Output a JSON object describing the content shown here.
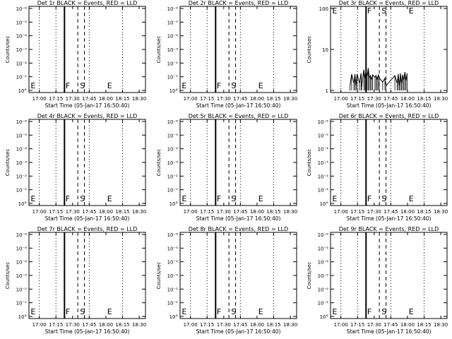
{
  "chart_data": [
    {
      "type": "line",
      "title": "Det 1r BLACK = Events, RED = LLD",
      "xlabel": "Start Time (05-Jan-17 16:50:40)",
      "ylabel": "Counts/sec",
      "x_ticks": [
        "17:00",
        "17:15",
        "17:30",
        "17:45",
        "18:00",
        "18:15",
        "18:30"
      ],
      "y_scale": "log",
      "y_tick_labels": [
        "10°",
        "10⁻¹",
        "10⁻²",
        "10⁻³",
        "10⁻⁴",
        "10⁻⁵",
        "10⁻⁶"
      ],
      "markers": [
        "E",
        "F",
        "S",
        "E"
      ],
      "series": []
    },
    {
      "type": "line",
      "title": "Det 2r BLACK = Events, RED = LLD",
      "xlabel": "Start Time (05-Jan-17 16:50:40)",
      "ylabel": "Counts/sec",
      "x_ticks": [
        "17:00",
        "17:15",
        "17:30",
        "17:45",
        "18:00",
        "18:15",
        "18:30"
      ],
      "y_scale": "log",
      "y_tick_labels": [
        "10°",
        "10⁻¹",
        "10⁻²",
        "10⁻³",
        "10⁻⁴",
        "10⁻⁵",
        "10⁻⁶"
      ],
      "markers": [
        "E",
        "F",
        "S",
        "E"
      ],
      "series": []
    },
    {
      "type": "line",
      "title": "Det 3r BLACK = Events, RED = LLD",
      "xlabel": "Start Time (05-Jan-17 16:50:40)",
      "ylabel": "Counts/sec",
      "x_ticks": [
        "17:00",
        "17:15",
        "17:30",
        "17:45",
        "18:00",
        "18:15",
        "18:30"
      ],
      "y_scale": "log",
      "y_tick_labels": [
        "1",
        "10",
        "100"
      ],
      "markers": [
        "E",
        "F",
        "S",
        "E"
      ],
      "series": [
        {
          "values_time_min": [
            17.5,
            19,
            21,
            22,
            23,
            24,
            26,
            27.5,
            28,
            30,
            31,
            32,
            33,
            34,
            35,
            36,
            37,
            38,
            40,
            41,
            42,
            43,
            44,
            47,
            49,
            50,
            58,
            60,
            61,
            62,
            63,
            64,
            65,
            66,
            67,
            68,
            69
          ],
          "counts": [
            1.3,
            2.5,
            1.5,
            2.5,
            1.3,
            2.5,
            1.5,
            2.6,
            1.2,
            3.2,
            2.0,
            3.0,
            2.2,
            3.5,
            2.0,
            2.3,
            1.8,
            2.4,
            2.1,
            2.3,
            1.8,
            2.4,
            2.0,
            1.6,
            2.0,
            1.3,
            2.3,
            1.5,
            2.5,
            1.3,
            2.6,
            1.5,
            2.4,
            1.8,
            2.8,
            1.7,
            2.6
          ]
        }
      ]
    },
    {
      "type": "line",
      "title": "Det 4r BLACK = Events, RED = LLD",
      "xlabel": "Start Time (05-Jan-17 16:50:40)",
      "ylabel": "Counts/sec",
      "x_ticks": [
        "17:00",
        "17:15",
        "17:30",
        "17:45",
        "18:00",
        "18:15",
        "18:30"
      ],
      "y_scale": "log",
      "y_tick_labels": [
        "10°",
        "10⁻¹",
        "10⁻²",
        "10⁻³",
        "10⁻⁴",
        "10⁻⁵",
        "10⁻⁶"
      ],
      "markers": [
        "E",
        "F",
        "S",
        "E"
      ],
      "series": []
    },
    {
      "type": "line",
      "title": "Det 5r BLACK = Events, RED = LLD",
      "xlabel": "Start Time (05-Jan-17 16:50:40)",
      "ylabel": "Counts/sec",
      "x_ticks": [
        "17:00",
        "17:15",
        "17:30",
        "17:45",
        "18:00",
        "18:15",
        "18:30"
      ],
      "y_scale": "log",
      "y_tick_labels": [
        "10°",
        "10⁻¹",
        "10⁻²",
        "10⁻³",
        "10⁻⁴",
        "10⁻⁵",
        "10⁻⁶"
      ],
      "markers": [
        "E",
        "F",
        "S",
        "E"
      ],
      "series": []
    },
    {
      "type": "line",
      "title": "Det 6r BLACK = Events, RED = LLD",
      "xlabel": "Start Time (05-Jan-17 16:50:40)",
      "ylabel": "Counts/sec",
      "x_ticks": [
        "17:00",
        "17:15",
        "17:30",
        "17:45",
        "18:00",
        "18:15",
        "18:30"
      ],
      "y_scale": "log",
      "y_tick_labels": [
        "10°",
        "10⁻¹",
        "10⁻²",
        "10⁻³",
        "10⁻⁴",
        "10⁻⁵",
        "10⁻⁶"
      ],
      "markers": [
        "E",
        "F",
        "S",
        "E"
      ],
      "series": []
    },
    {
      "type": "line",
      "title": "Det 7r BLACK = Events, RED = LLD",
      "xlabel": "Start Time (05-Jan-17 16:50:40)",
      "ylabel": "Counts/sec",
      "x_ticks": [
        "17:00",
        "17:15",
        "17:30",
        "17:45",
        "18:00",
        "18:15",
        "18:30"
      ],
      "y_scale": "log",
      "y_tick_labels": [
        "10°",
        "10⁻¹",
        "10⁻²",
        "10⁻³",
        "10⁻⁴",
        "10⁻⁵",
        "10⁻⁶"
      ],
      "markers": [
        "E",
        "F",
        "S",
        "E"
      ],
      "series": []
    },
    {
      "type": "line",
      "title": "Det 8r BLACK = Events, RED = LLD",
      "xlabel": "Start Time (05-Jan-17 16:50:40)",
      "ylabel": "Counts/sec",
      "x_ticks": [
        "17:00",
        "17:15",
        "17:30",
        "17:45",
        "18:00",
        "18:15",
        "18:30"
      ],
      "y_scale": "log",
      "y_tick_labels": [
        "10°",
        "10⁻¹",
        "10⁻²",
        "10⁻³",
        "10⁻⁴",
        "10⁻⁵",
        "10⁻⁶"
      ],
      "markers": [
        "E",
        "F",
        "S",
        "E"
      ],
      "series": []
    },
    {
      "type": "line",
      "title": "Det 9r BLACK = Events, RED = LLD",
      "xlabel": "Start Time (05-Jan-17 16:50:40)",
      "ylabel": "Counts/sec",
      "x_ticks": [
        "17:00",
        "17:15",
        "17:30",
        "17:45",
        "18:00",
        "18:15",
        "18:30"
      ],
      "y_scale": "log",
      "y_tick_labels": [
        "10°",
        "10⁻¹",
        "10⁻²",
        "10⁻³",
        "10⁻⁴",
        "10⁻⁵",
        "10⁻⁶"
      ],
      "markers": [
        "E",
        "F",
        "S",
        "E"
      ],
      "series": []
    }
  ]
}
